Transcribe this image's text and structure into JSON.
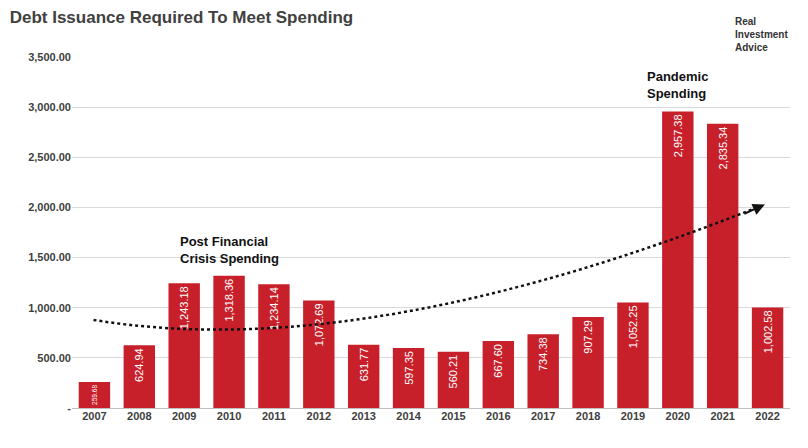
{
  "chart_data": {
    "type": "bar",
    "title": "Debt Issuance Required To Meet Spending",
    "categories": [
      "2007",
      "2008",
      "2009",
      "2010",
      "2011",
      "2012",
      "2013",
      "2014",
      "2015",
      "2016",
      "2017",
      "2018",
      "2019",
      "2020",
      "2021",
      "2022"
    ],
    "values": [
      259.68,
      624.94,
      1243.18,
      1318.36,
      1234.14,
      1072.69,
      631.77,
      597.35,
      560.21,
      667.6,
      734.38,
      907.29,
      1052.25,
      2957.38,
      2835.34,
      1002.58
    ],
    "value_labels": [
      "259.68",
      "624.94",
      "1,243.18",
      "1,318.36",
      "1,234.14",
      "1,072.69",
      "631.77",
      "597.35",
      "560.21",
      "667.60",
      "734.38",
      "907.29",
      "1,052.25",
      "2,957.38",
      "2,835.34",
      "1,002.58"
    ],
    "color": "#c8202a",
    "ylim": [
      0,
      3500
    ],
    "yticks": [
      {
        "value": 0,
        "label": "-"
      },
      {
        "value": 500,
        "label": "500.00"
      },
      {
        "value": 1000,
        "label": "1,000.00"
      },
      {
        "value": 1500,
        "label": "1,500.00"
      },
      {
        "value": 2000,
        "label": "2,000.00"
      },
      {
        "value": 2500,
        "label": "2,500.00"
      },
      {
        "value": 3000,
        "label": "3,000.00"
      },
      {
        "value": 3500,
        "label": "3,500.00"
      }
    ],
    "grid": true,
    "data_labels": true,
    "annotations": [
      {
        "lines": [
          "Post Financial",
          "Crisis Spending"
        ],
        "category": "2010"
      },
      {
        "lines": [
          "Pandemic",
          "Spending"
        ],
        "category": "2020"
      }
    ],
    "logo": [
      "Real",
      "Investment",
      "Advice"
    ]
  }
}
